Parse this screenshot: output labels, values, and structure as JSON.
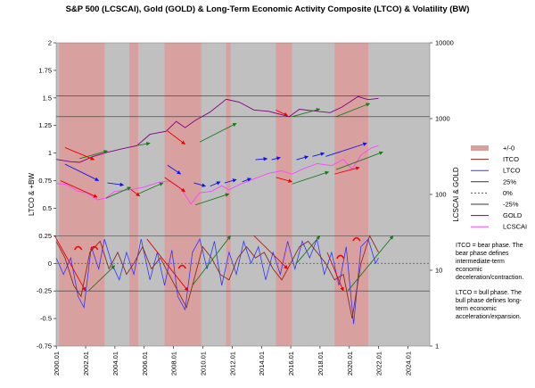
{
  "chart_data": {
    "type": "line",
    "title": "S&P 500 (LCSCAI), Gold (GOLD) & Long-Term Economic Activity Composite (LTCO) & Volatility (BW)",
    "ylabel_left": "LTCO & +BW",
    "ylabel_right": "LCSCAI & GOLD",
    "left_axis": {
      "min": -0.75,
      "max": 2,
      "ticks": [
        "-0.75",
        "-0.5",
        "-0.25",
        "0",
        "0.25",
        "0.5",
        "0.75",
        "1",
        "1.25",
        "1.5",
        "1.75",
        "2"
      ]
    },
    "right_axis": {
      "scale": "log",
      "min": 1,
      "max": 10000,
      "ticks": [
        "1",
        "10",
        "100",
        "1000",
        "10000"
      ]
    },
    "x_ticks": [
      "2000.01",
      "2002.01",
      "2004.01",
      "2006.01",
      "2008.01",
      "2010.01",
      "2012.01",
      "2014.01",
      "2016.01",
      "2018.01",
      "2020.01",
      "2022.01",
      "2024.01"
    ],
    "x_range": [
      2000.0,
      2025.5
    ],
    "reference_lines": [
      0.25,
      -0.25,
      1.33,
      1.52
    ],
    "bear_phases": [
      {
        "start": 2000.2,
        "end": 2003.3
      },
      {
        "start": 2005.0,
        "end": 2005.6
      },
      {
        "start": 2007.4,
        "end": 2009.9
      },
      {
        "start": 2011.6,
        "end": 2011.9
      },
      {
        "start": 2015.0,
        "end": 2016.1
      },
      {
        "start": 2019.0,
        "end": 2021.3
      }
    ],
    "legend": [
      "+/-0",
      "ITCO",
      "LTCO",
      "25%",
      "0%",
      "-25%",
      "GOLD",
      "LCSCAI"
    ],
    "colors": {
      "bear": "#d9a0a0",
      "bull": "#c0c0c0",
      "ltco": "#3333ff",
      "itco": "#8b2a1a",
      "gold": "#800080",
      "lcscai": "#ff44ff",
      "red": "#ee0000",
      "green": "#1a7a1a",
      "blue": "#1111ee"
    },
    "series": [
      {
        "name": "GOLD",
        "axis": "right",
        "points": [
          [
            2000.0,
            290
          ],
          [
            2001.0,
            270
          ],
          [
            2001.6,
            265
          ],
          [
            2002.5,
            315
          ],
          [
            2003.5,
            360
          ],
          [
            2004.5,
            400
          ],
          [
            2005.5,
            440
          ],
          [
            2006.4,
            620
          ],
          [
            2007.5,
            680
          ],
          [
            2008.2,
            920
          ],
          [
            2008.8,
            760
          ],
          [
            2009.5,
            950
          ],
          [
            2010.5,
            1220
          ],
          [
            2011.6,
            1800
          ],
          [
            2012.5,
            1650
          ],
          [
            2013.5,
            1300
          ],
          [
            2014.5,
            1250
          ],
          [
            2015.9,
            1060
          ],
          [
            2016.6,
            1330
          ],
          [
            2017.5,
            1270
          ],
          [
            2018.7,
            1200
          ],
          [
            2019.5,
            1420
          ],
          [
            2020.6,
            1950
          ],
          [
            2021.3,
            1780
          ],
          [
            2022.0,
            1850
          ]
        ]
      },
      {
        "name": "LCSCAI",
        "axis": "right",
        "points": [
          [
            2000.0,
            140
          ],
          [
            2000.7,
            135
          ],
          [
            2001.5,
            110
          ],
          [
            2002.1,
            105
          ],
          [
            2002.8,
            85
          ],
          [
            2003.4,
            90
          ],
          [
            2004.0,
            110
          ],
          [
            2005.0,
            115
          ],
          [
            2006.0,
            125
          ],
          [
            2007.0,
            145
          ],
          [
            2007.8,
            150
          ],
          [
            2008.5,
            120
          ],
          [
            2009.2,
            75
          ],
          [
            2009.8,
            105
          ],
          [
            2010.6,
            110
          ],
          [
            2011.3,
            130
          ],
          [
            2011.8,
            115
          ],
          [
            2012.5,
            135
          ],
          [
            2013.5,
            160
          ],
          [
            2014.5,
            190
          ],
          [
            2015.4,
            205
          ],
          [
            2016.1,
            185
          ],
          [
            2016.8,
            215
          ],
          [
            2017.8,
            255
          ],
          [
            2018.8,
            240
          ],
          [
            2019.6,
            290
          ],
          [
            2020.2,
            215
          ],
          [
            2020.8,
            330
          ],
          [
            2021.5,
            410
          ],
          [
            2022.0,
            440
          ]
        ]
      },
      {
        "name": "LTCO",
        "axis": "left",
        "points": [
          [
            2000.0,
            0.05
          ],
          [
            2000.5,
            -0.1
          ],
          [
            2001.0,
            0.05
          ],
          [
            2001.5,
            -0.3
          ],
          [
            2001.9,
            -0.4
          ],
          [
            2002.4,
            0.15
          ],
          [
            2002.9,
            -0.05
          ],
          [
            2003.3,
            0.22
          ],
          [
            2003.8,
            0.0
          ],
          [
            2004.3,
            -0.15
          ],
          [
            2004.8,
            0.1
          ],
          [
            2005.3,
            -0.1
          ],
          [
            2005.8,
            0.22
          ],
          [
            2006.4,
            -0.15
          ],
          [
            2006.9,
            0.1
          ],
          [
            2007.4,
            -0.2
          ],
          [
            2007.9,
            0.12
          ],
          [
            2008.3,
            -0.3
          ],
          [
            2008.8,
            -0.42
          ],
          [
            2009.3,
            0.1
          ],
          [
            2009.8,
            0.22
          ],
          [
            2010.3,
            -0.05
          ],
          [
            2010.8,
            0.2
          ],
          [
            2011.3,
            -0.2
          ],
          [
            2011.8,
            0.1
          ],
          [
            2012.3,
            -0.1
          ],
          [
            2012.8,
            0.2
          ],
          [
            2013.3,
            0.0
          ],
          [
            2013.8,
            0.15
          ],
          [
            2014.3,
            -0.15
          ],
          [
            2014.8,
            0.1
          ],
          [
            2015.3,
            -0.1
          ],
          [
            2015.8,
            0.2
          ],
          [
            2016.3,
            -0.05
          ],
          [
            2016.8,
            0.2
          ],
          [
            2017.3,
            0.05
          ],
          [
            2017.8,
            0.22
          ],
          [
            2018.3,
            -0.1
          ],
          [
            2018.8,
            0.1
          ],
          [
            2019.3,
            -0.2
          ],
          [
            2019.8,
            0.15
          ],
          [
            2020.3,
            -0.55
          ],
          [
            2020.8,
            0.15
          ],
          [
            2021.3,
            0.22
          ],
          [
            2021.8,
            0.0
          ],
          [
            2022.0,
            0.05
          ]
        ]
      },
      {
        "name": "ITCO",
        "axis": "left",
        "points": [
          [
            2000.0,
            0.2
          ],
          [
            2000.6,
            0.05
          ],
          [
            2001.2,
            -0.2
          ],
          [
            2001.7,
            -0.3
          ],
          [
            2002.3,
            0.1
          ],
          [
            2003.0,
            0.2
          ],
          [
            2003.6,
            -0.05
          ],
          [
            2004.2,
            0.1
          ],
          [
            2004.8,
            -0.1
          ],
          [
            2005.3,
            0.0
          ],
          [
            2005.9,
            0.15
          ],
          [
            2006.5,
            -0.05
          ],
          [
            2007.1,
            0.05
          ],
          [
            2007.7,
            -0.1
          ],
          [
            2008.3,
            -0.25
          ],
          [
            2008.9,
            -0.4
          ],
          [
            2009.5,
            -0.1
          ],
          [
            2010.0,
            0.15
          ],
          [
            2010.6,
            0.05
          ],
          [
            2011.2,
            -0.1
          ],
          [
            2011.8,
            -0.15
          ],
          [
            2012.4,
            0.05
          ],
          [
            2013.0,
            0.15
          ],
          [
            2013.6,
            0.05
          ],
          [
            2014.2,
            0.1
          ],
          [
            2014.8,
            -0.05
          ],
          [
            2015.4,
            -0.15
          ],
          [
            2016.0,
            0.0
          ],
          [
            2016.6,
            0.15
          ],
          [
            2017.2,
            0.2
          ],
          [
            2017.8,
            0.1
          ],
          [
            2018.4,
            0.0
          ],
          [
            2019.0,
            -0.15
          ],
          [
            2019.6,
            -0.1
          ],
          [
            2020.2,
            -0.5
          ],
          [
            2020.8,
            0.0
          ],
          [
            2021.4,
            0.25
          ],
          [
            2022.0,
            0.1
          ]
        ]
      }
    ],
    "phase_arrows": [
      {
        "color": "red",
        "from": [
          1999.9,
          0.25
        ],
        "to": [
          2002.0,
          -0.25
        ]
      },
      {
        "color": "green",
        "from": [
          2002.2,
          -0.25
        ],
        "to": [
          2004.0,
          -0.02
        ]
      },
      {
        "color": "red",
        "from": [
          2006.2,
          0.22
        ],
        "to": [
          2009.0,
          -0.25
        ]
      },
      {
        "color": "green",
        "from": [
          2009.3,
          -0.2
        ],
        "to": [
          2011.9,
          0.25
        ]
      },
      {
        "color": "red",
        "from": [
          2013.5,
          0.25
        ],
        "to": [
          2015.8,
          -0.05
        ]
      },
      {
        "color": "green",
        "from": [
          2016.4,
          0.0
        ],
        "to": [
          2018.0,
          0.25
        ]
      },
      {
        "color": "red",
        "from": [
          2018.5,
          0.1
        ],
        "to": [
          2019.6,
          -0.25
        ]
      },
      {
        "color": "green",
        "from": [
          2019.9,
          -0.25
        ],
        "to": [
          2023.0,
          0.25
        ]
      },
      {
        "color": "red",
        "from": [
          2000.3,
          0.75
        ],
        "to": [
          2002.8,
          0.6
        ]
      },
      {
        "color": "red",
        "from": [
          2005.1,
          0.67
        ],
        "to": [
          2005.7,
          0.61
        ]
      },
      {
        "color": "red",
        "from": [
          2007.4,
          0.78
        ],
        "to": [
          2008.8,
          0.65
        ]
      },
      {
        "color": "red",
        "from": [
          2015.0,
          0.78
        ],
        "to": [
          2016.1,
          0.74
        ]
      },
      {
        "color": "red",
        "from": [
          2019.0,
          0.81
        ],
        "to": [
          2020.7,
          0.87
        ]
      },
      {
        "color": "red",
        "from": [
          2000.6,
          1.05
        ],
        "to": [
          2002.6,
          0.94
        ]
      },
      {
        "color": "red",
        "from": [
          2007.6,
          1.2
        ],
        "to": [
          2008.8,
          1.08
        ]
      },
      {
        "color": "red",
        "from": [
          2015.0,
          1.39
        ],
        "to": [
          2015.8,
          1.34
        ]
      },
      {
        "color": "blue",
        "from": [
          2000.6,
          0.9
        ],
        "to": [
          2002.9,
          0.75
        ]
      },
      {
        "color": "blue",
        "from": [
          2003.5,
          0.73
        ],
        "to": [
          2004.6,
          0.71
        ]
      },
      {
        "color": "blue",
        "from": [
          2007.6,
          0.89
        ],
        "to": [
          2008.5,
          0.81
        ]
      },
      {
        "color": "blue",
        "from": [
          2009.4,
          0.73
        ],
        "to": [
          2010.2,
          0.7
        ]
      },
      {
        "color": "blue",
        "from": [
          2010.5,
          0.7
        ],
        "to": [
          2011.2,
          0.74
        ]
      },
      {
        "color": "blue",
        "from": [
          2011.5,
          0.73
        ],
        "to": [
          2012.3,
          0.76
        ]
      },
      {
        "color": "blue",
        "from": [
          2012.7,
          0.74
        ],
        "to": [
          2013.3,
          0.77
        ]
      },
      {
        "color": "blue",
        "from": [
          2013.6,
          0.94
        ],
        "to": [
          2014.4,
          0.95
        ]
      },
      {
        "color": "blue",
        "from": [
          2014.7,
          0.94
        ],
        "to": [
          2015.3,
          0.96
        ]
      },
      {
        "color": "blue",
        "from": [
          2016.4,
          0.94
        ],
        "to": [
          2017.2,
          0.97
        ]
      },
      {
        "color": "blue",
        "from": [
          2017.5,
          0.97
        ],
        "to": [
          2018.3,
          1.0
        ]
      },
      {
        "color": "blue",
        "from": [
          2018.4,
          0.97
        ],
        "to": [
          2021.2,
          1.09
        ]
      },
      {
        "color": "green",
        "from": [
          2001.6,
          0.95
        ],
        "to": [
          2003.5,
          1.02
        ]
      },
      {
        "color": "green",
        "from": [
          2003.4,
          0.59
        ],
        "to": [
          2005.1,
          0.69
        ]
      },
      {
        "color": "green",
        "from": [
          2005.6,
          1.07
        ],
        "to": [
          2006.4,
          1.09
        ]
      },
      {
        "color": "green",
        "from": [
          2005.6,
          0.63
        ],
        "to": [
          2007.3,
          0.73
        ]
      },
      {
        "color": "green",
        "from": [
          2009.8,
          1.1
        ],
        "to": [
          2012.3,
          1.27
        ]
      },
      {
        "color": "green",
        "from": [
          2009.5,
          0.53
        ],
        "to": [
          2011.8,
          0.63
        ]
      },
      {
        "color": "green",
        "from": [
          2016.1,
          1.33
        ],
        "to": [
          2018.0,
          1.4
        ]
      },
      {
        "color": "green",
        "from": [
          2016.1,
          0.72
        ],
        "to": [
          2018.6,
          0.83
        ]
      },
      {
        "color": "green",
        "from": [
          2019.1,
          1.33
        ],
        "to": [
          2021.4,
          1.45
        ]
      },
      {
        "color": "green",
        "from": [
          2019.1,
          0.85
        ],
        "to": [
          2022.3,
          1.01
        ]
      }
    ],
    "peak_arcs": [
      {
        "x": 2001.5,
        "y": 0.14
      },
      {
        "x": 2002.6,
        "y": 0.14
      },
      {
        "x": 2008.6,
        "y": -0.03
      },
      {
        "x": 2019.4,
        "y": 0.06
      },
      {
        "x": 2020.5,
        "y": 0.22
      }
    ],
    "notes": [
      "ITCO = bear phase.  The bear phase defines intermediate-term economic deceleration/contraction.",
      "LTCO = bull phase.  The bull phase defines long-term economic acceleration/expansion."
    ]
  }
}
